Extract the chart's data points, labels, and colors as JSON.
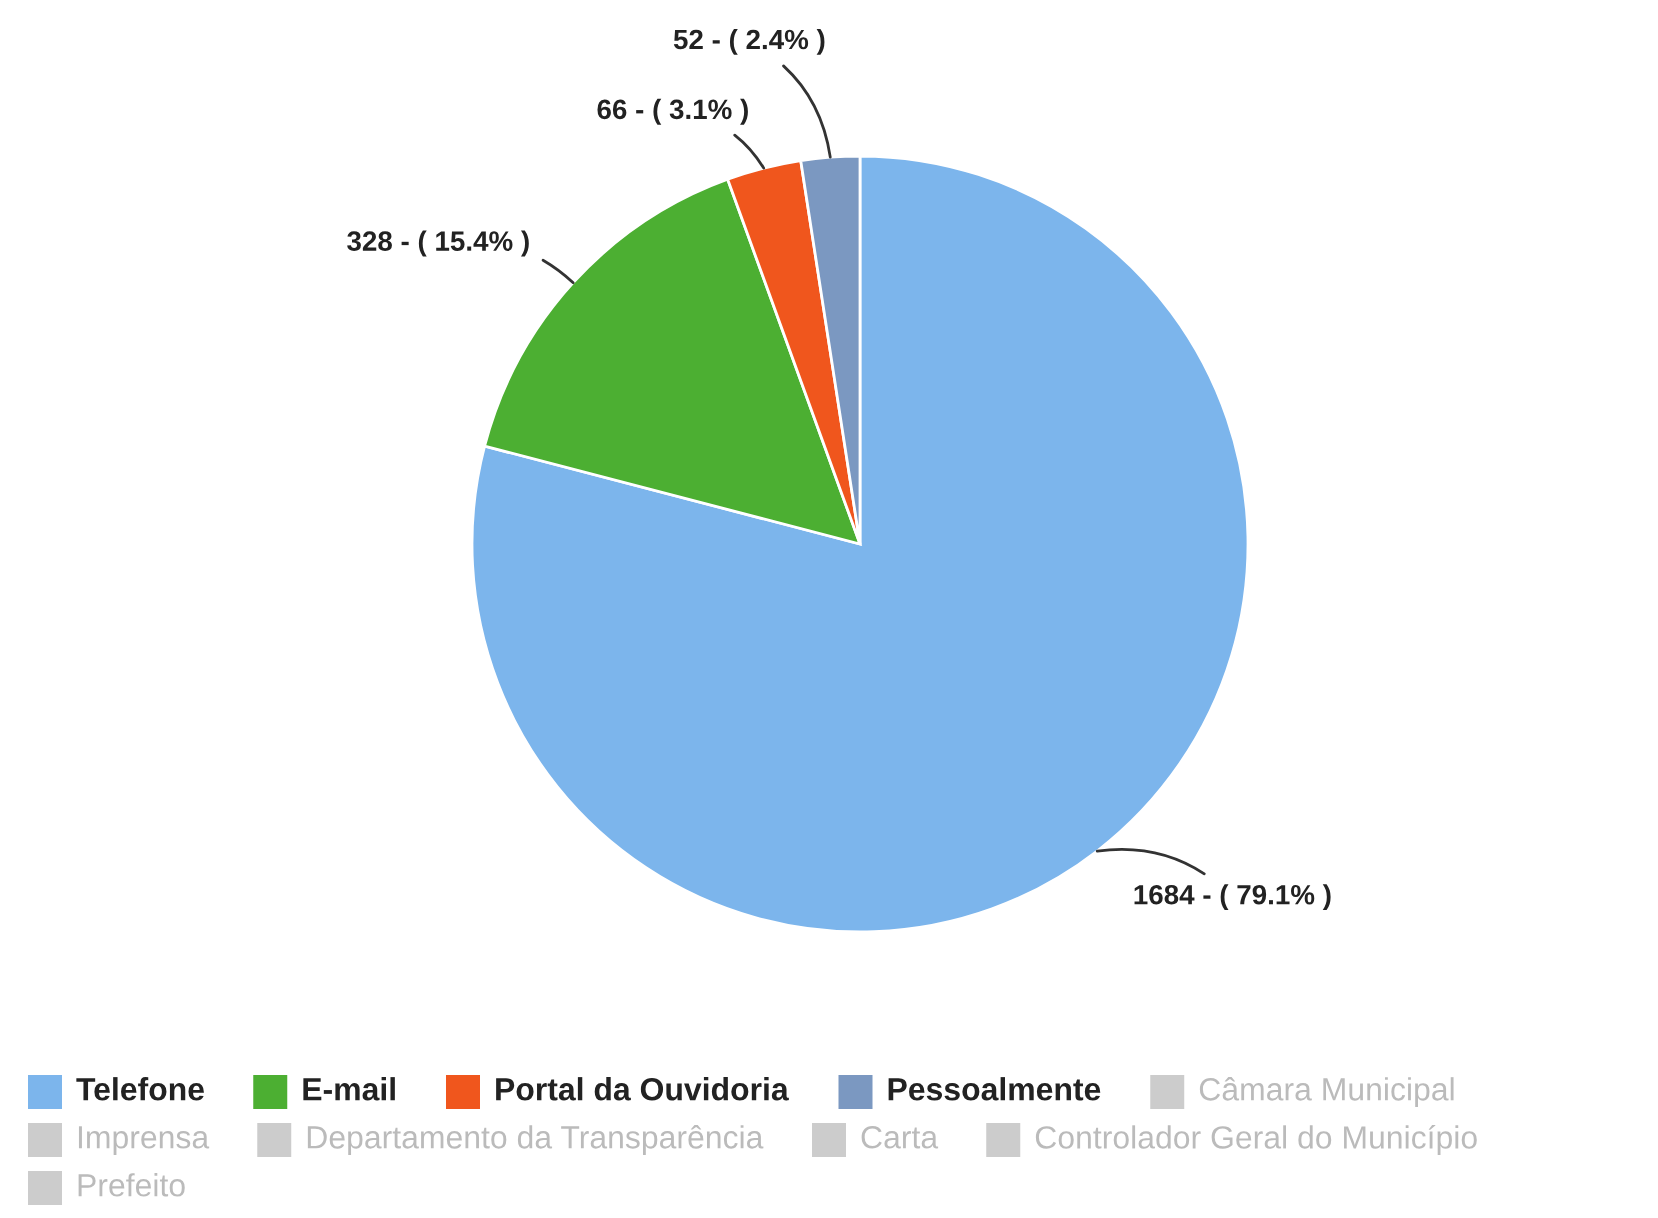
{
  "chart_data": {
    "type": "pie",
    "categories": [
      "Telefone",
      "E-mail",
      "Portal da Ouvidoria",
      "Pessoalmente",
      "Câmara Municipal",
      "Imprensa",
      "Departamento da Transparência",
      "Carta",
      "Controlador Geral do Município",
      "Prefeito"
    ],
    "values": [
      1684,
      328,
      66,
      52,
      null,
      null,
      null,
      null,
      null,
      null
    ],
    "colors": [
      "#7cb5ec",
      "#4caf32",
      "#f0561d",
      "#7b98c1",
      "#cccccc",
      "#cccccc",
      "#cccccc",
      "#cccccc",
      "#cccccc",
      "#cccccc"
    ],
    "value_labels": [
      "1684 - ( 79.1% )",
      "328 - ( 15.4% )",
      "66 - ( 3.1% )",
      "52 - ( 2.4% )",
      null,
      null,
      null,
      null,
      null,
      null
    ],
    "legend": "bottom"
  }
}
